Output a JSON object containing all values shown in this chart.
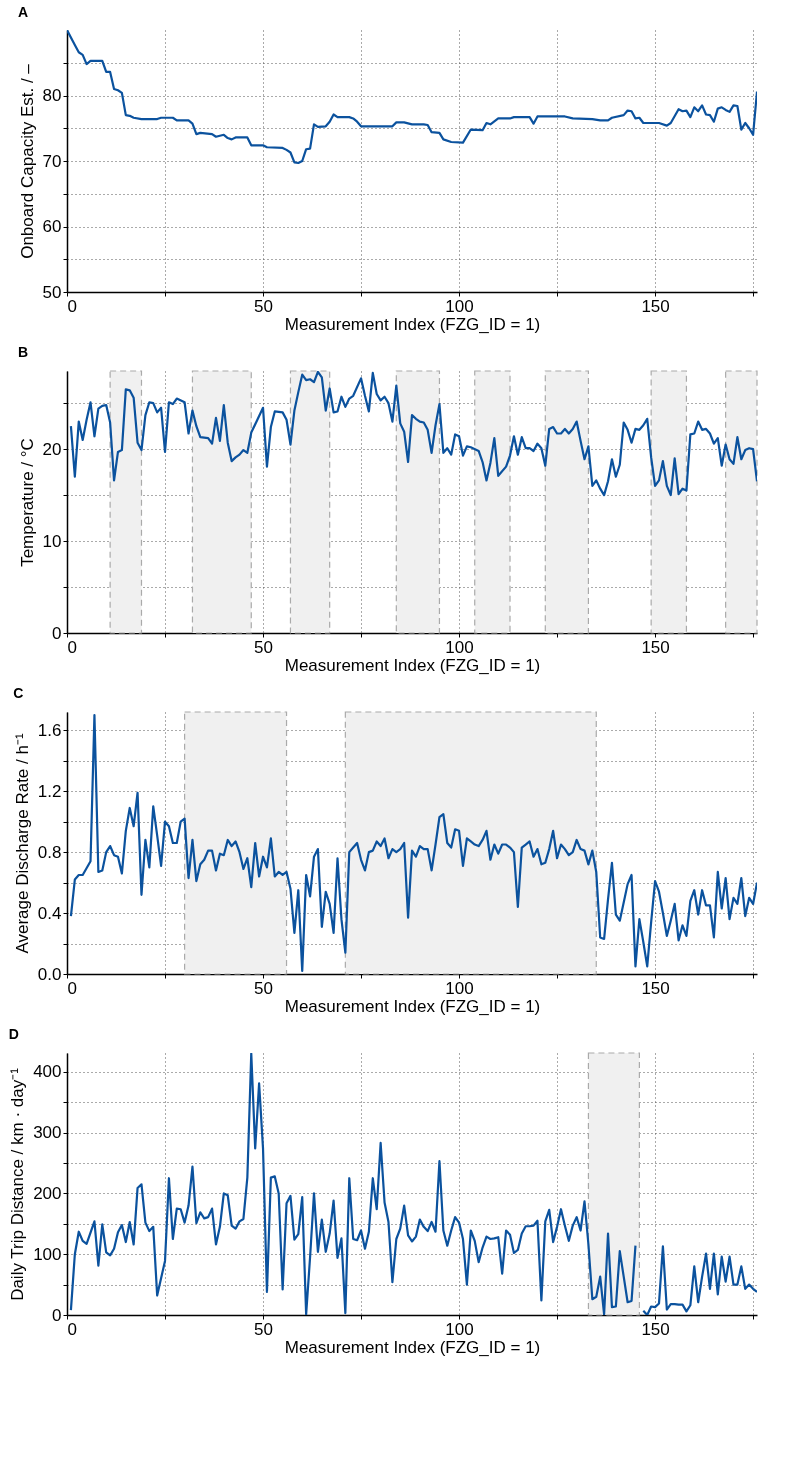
{
  "chart_data": [
    {
      "type": "line",
      "title": "A",
      "xlabel": "Measurement Index (FZG_ID = 1)",
      "ylabel": "Onboard Capacity Est. / –",
      "xlim": [
        0,
        176
      ],
      "ylim": [
        50,
        90
      ],
      "grid": true,
      "xticks": [
        0,
        {
          "value": 25,
          "label": null
        },
        50,
        {
          "value": 75,
          "label": null
        },
        100,
        {
          "value": 125,
          "label": null
        },
        150,
        {
          "value": 175,
          "label": null
        }
      ],
      "yticks": [
        50,
        {
          "value": 55,
          "label": null
        },
        60,
        {
          "value": 65,
          "label": null
        },
        70,
        {
          "value": 75,
          "label": null
        },
        80,
        {
          "value": 85,
          "label": null
        }
      ],
      "x": [
        0,
        2,
        3,
        4,
        5,
        6,
        9,
        10,
        11,
        12,
        13,
        14,
        15,
        16,
        17,
        19,
        23,
        24,
        27,
        28,
        31,
        32,
        33,
        34,
        37,
        38,
        40,
        41,
        42,
        43,
        46,
        47,
        50,
        51,
        55,
        56,
        57,
        58,
        59,
        60,
        61,
        62,
        63,
        64,
        66,
        67,
        68,
        69,
        72,
        73,
        74,
        75,
        83,
        84,
        86,
        88,
        91,
        92,
        93,
        95,
        96,
        98,
        101,
        103,
        106,
        107,
        108,
        110,
        113,
        114,
        118,
        119,
        120,
        127,
        129,
        134,
        136,
        138,
        139,
        142,
        143,
        144,
        145,
        146,
        147,
        151,
        153,
        154,
        156,
        157,
        158,
        159,
        160,
        161,
        162,
        163,
        164,
        165,
        166,
        167,
        168,
        169,
        170,
        171,
        172,
        173,
        174,
        175,
        176
      ],
      "series": [
        {
          "color": "#0b529e",
          "values": [
            90,
            87.7,
            86.6,
            86.2,
            84.8,
            85.3,
            85.3,
            83.6,
            83.6,
            81,
            80.8,
            80.4,
            77,
            76.9,
            76.6,
            76.4,
            76.4,
            76.6,
            76.6,
            76.2,
            76.2,
            75.7,
            74.1,
            74.3,
            74.1,
            73.7,
            74,
            73.5,
            73.3,
            73.6,
            73.6,
            72.4,
            72.4,
            72.1,
            72,
            71.7,
            71.3,
            69.8,
            69.7,
            70,
            71.8,
            71.9,
            75.6,
            75.2,
            75.3,
            76,
            77.1,
            76.7,
            76.7,
            76.5,
            76,
            75.3,
            75.3,
            75.9,
            75.9,
            75.6,
            75.6,
            75.5,
            74.4,
            74.3,
            73.3,
            72.9,
            72.8,
            74.8,
            74.7,
            75.8,
            75.6,
            76.5,
            76.5,
            76.7,
            76.7,
            75.7,
            76.8,
            76.8,
            76.5,
            76.4,
            76.2,
            76.2,
            76.6,
            77,
            77.7,
            77.6,
            76.5,
            76.6,
            75.8,
            75.8,
            75.4,
            75.8,
            77.9,
            77.6,
            77.7,
            76.7,
            78.2,
            77.6,
            78.5,
            77.1,
            77,
            76,
            78,
            78.2,
            77.8,
            77.5,
            78.5,
            78.4,
            74.8,
            75.8,
            75,
            74,
            80.6
          ]
        }
      ]
    },
    {
      "type": "line",
      "title": "B",
      "xlabel": "Measurement Index (FZG_ID = 1)",
      "ylabel": "Temperature / °C",
      "xlim": [
        0,
        176
      ],
      "ylim": [
        0,
        28.5
      ],
      "grid": true,
      "xticks": [
        0,
        {
          "value": 25,
          "label": null
        },
        50,
        {
          "value": 75,
          "label": null
        },
        100,
        {
          "value": 125,
          "label": null
        },
        150,
        {
          "value": 175,
          "label": null
        }
      ],
      "yticks": [
        0,
        {
          "value": 5,
          "label": null
        },
        10,
        {
          "value": 15,
          "label": null
        },
        20,
        {
          "value": 25,
          "label": null
        }
      ],
      "bands": [
        {
          "axis": "x",
          "from": 11,
          "to": 19,
          "color": "#f0f0f0"
        },
        {
          "axis": "x",
          "from": 32,
          "to": 47,
          "color": "#f0f0f0"
        },
        {
          "axis": "x",
          "from": 57,
          "to": 67,
          "color": "#f0f0f0"
        },
        {
          "axis": "x",
          "from": 84,
          "to": 95,
          "color": "#f0f0f0"
        },
        {
          "axis": "x",
          "from": 104,
          "to": 113,
          "color": "#f0f0f0"
        },
        {
          "axis": "x",
          "from": 122,
          "to": 133,
          "color": "#f0f0f0"
        },
        {
          "axis": "x",
          "from": 149,
          "to": 158,
          "color": "#f0f0f0"
        },
        {
          "axis": "x",
          "from": 168,
          "to": 176,
          "color": "#f0f0f0"
        }
      ],
      "x": [
        1,
        2,
        3,
        4,
        5,
        6,
        7,
        8,
        9,
        10,
        11,
        12,
        13,
        14,
        15,
        16,
        17,
        18,
        19,
        20,
        21,
        22,
        23,
        24,
        25,
        26,
        27,
        28,
        30,
        31,
        32,
        33,
        34,
        36,
        37,
        38,
        39,
        40,
        41,
        42,
        43,
        44,
        45,
        46,
        47,
        50,
        51,
        52,
        53,
        55,
        56,
        57,
        58,
        59,
        60,
        61,
        62,
        63,
        64,
        65,
        66,
        67,
        68,
        69,
        70,
        71,
        72,
        73,
        75,
        76,
        77,
        78,
        79,
        80,
        81,
        82,
        83,
        84,
        85,
        86,
        87,
        88,
        89,
        90,
        91,
        92,
        93,
        94,
        95,
        96,
        97,
        98,
        99,
        100,
        101,
        102,
        103,
        105,
        106,
        107,
        108,
        109,
        110,
        112,
        113,
        114,
        115,
        116,
        117,
        118,
        119,
        120,
        121,
        122,
        123,
        124,
        125,
        126,
        127,
        128,
        129,
        130,
        131,
        132,
        133,
        134,
        135,
        136,
        137,
        138,
        139,
        140,
        141,
        142,
        143,
        144,
        145,
        146,
        147,
        148,
        149,
        150,
        151,
        152,
        153,
        154,
        155,
        156,
        157,
        158,
        159,
        160,
        161,
        162,
        163,
        164,
        165,
        166,
        167,
        168,
        169,
        170,
        171,
        172,
        173,
        174,
        175,
        176
      ],
      "series": [
        {
          "color": "#0b529e",
          "values": [
            22.5,
            17,
            23,
            21,
            23.2,
            25.1,
            21.4,
            24.4,
            24.7,
            24.8,
            22.9,
            16.6,
            19.7,
            19.9,
            26.5,
            26.4,
            25.6,
            20.7,
            19.9,
            23.7,
            25.1,
            25,
            24,
            24.5,
            19.7,
            25.1,
            24.9,
            25.5,
            25.1,
            21.7,
            24.2,
            22.5,
            21.3,
            21.2,
            20.6,
            23.4,
            20.9,
            24.8,
            20.7,
            18.7,
            19.1,
            19.4,
            19.9,
            19.6,
            21.8,
            24.5,
            18.1,
            22.4,
            24.1,
            24,
            23.2,
            20.5,
            24.2,
            26.2,
            28.1,
            27.5,
            27.6,
            27.3,
            28.4,
            27.8,
            24.2,
            26.6,
            24,
            24.1,
            25.7,
            24.6,
            25.5,
            25.8,
            27.7,
            25.8,
            24.1,
            28.3,
            26,
            25.3,
            25.7,
            25,
            23,
            26.9,
            22.8,
            21.9,
            18.6,
            23.7,
            23.3,
            23,
            22.9,
            22.1,
            19.6,
            22.6,
            24.9,
            19.6,
            20.1,
            19.4,
            21.6,
            21.4,
            19.3,
            20.3,
            20.2,
            19.8,
            18.6,
            16.6,
            18.5,
            21.2,
            17.1,
            18.1,
            19.3,
            21.4,
            19.4,
            21.3,
            20.1,
            20.1,
            19.8,
            20.6,
            20.1,
            18.2,
            22.2,
            22.4,
            21.7,
            21.7,
            22.2,
            21.7,
            22.2,
            23,
            20.9,
            18.9,
            20.3,
            16,
            16.6,
            15.7,
            15,
            16.5,
            18.9,
            17,
            18.3,
            22.9,
            22.1,
            20.7,
            22.2,
            22.1,
            22.6,
            23.3,
            19.1,
            16,
            16.6,
            18.7,
            16,
            15,
            19,
            15.1,
            15.7,
            15.5,
            21.6,
            21.7,
            23,
            22.1,
            22.2,
            21.7,
            20.6,
            21.2,
            18.2,
            20.5,
            18.9,
            18.4,
            21.3,
            18.9,
            19.9,
            20.1,
            20,
            16.5
          ]
        }
      ]
    },
    {
      "type": "line",
      "title": "C",
      "xlabel": "Measurement Index (FZG_ID = 1)",
      "ylabel": "Average Discharge Rate  / h⁻¹",
      "xlim": [
        0,
        176
      ],
      "ylim": [
        0,
        1.72
      ],
      "grid": true,
      "xticks": [
        0,
        {
          "value": 25,
          "label": null
        },
        50,
        {
          "value": 75,
          "label": null
        },
        100,
        {
          "value": 125,
          "label": null
        },
        150,
        {
          "value": 175,
          "label": null
        }
      ],
      "yticks": [
        {
          "value": 0,
          "label": "0.0"
        },
        {
          "value": 0.2,
          "label": null
        },
        0.4,
        {
          "value": 0.6,
          "label": null
        },
        0.8,
        {
          "value": 1.0,
          "label": null
        },
        1.2,
        {
          "value": 1.4,
          "label": null
        },
        1.6
      ],
      "bands": [
        {
          "axis": "x",
          "from": 30,
          "to": 56,
          "color": "#f0f0f0"
        },
        {
          "axis": "x",
          "from": 71,
          "to": 135,
          "color": "#f0f0f0"
        }
      ],
      "x": [
        1,
        2,
        3,
        4,
        6,
        7,
        8,
        9,
        10,
        11,
        12,
        13,
        14,
        15,
        16,
        17,
        18,
        19,
        20,
        21,
        22,
        23,
        24,
        25,
        26,
        27,
        28,
        29,
        30,
        31,
        32,
        33,
        34,
        35,
        36,
        37,
        38,
        39,
        40,
        41,
        42,
        43,
        44,
        45,
        46,
        47,
        48,
        49,
        50,
        51,
        52,
        53,
        54,
        55,
        56,
        57,
        58,
        59,
        60,
        61,
        62,
        63,
        64,
        65,
        66,
        67,
        68,
        69,
        70,
        71,
        72,
        73,
        74,
        75,
        76,
        77,
        78,
        79,
        80,
        81,
        82,
        83,
        84,
        85,
        86,
        87,
        88,
        89,
        90,
        91,
        92,
        93,
        94,
        95,
        96,
        97,
        98,
        99,
        100,
        101,
        102,
        103,
        104,
        105,
        106,
        107,
        108,
        109,
        110,
        111,
        112,
        113,
        114,
        115,
        116,
        117,
        118,
        119,
        120,
        121,
        122,
        123,
        124,
        125,
        126,
        127,
        128,
        129,
        130,
        131,
        132,
        133,
        134,
        135,
        136,
        137,
        138,
        139,
        140,
        141,
        142,
        143,
        144,
        145,
        146,
        147,
        148,
        149,
        150,
        151,
        152,
        153,
        154,
        155,
        156,
        157,
        158,
        159,
        160,
        161,
        162,
        163,
        164,
        165,
        166,
        167,
        168,
        169,
        170,
        171,
        172,
        173,
        174,
        175,
        176
      ],
      "series": [
        {
          "color": "#0b529e",
          "values": [
            0.38,
            0.62,
            0.65,
            0.65,
            0.74,
            1.7,
            0.67,
            0.68,
            0.8,
            0.84,
            0.78,
            0.77,
            0.66,
            0.94,
            1.09,
            0.97,
            1.19,
            0.52,
            0.88,
            0.7,
            1.1,
            0.91,
            0.71,
            1,
            0.97,
            0.86,
            0.86,
            1,
            1.02,
            0.63,
            0.88,
            0.61,
            0.72,
            0.75,
            0.81,
            0.81,
            0.68,
            0.79,
            0.78,
            0.88,
            0.84,
            0.87,
            0.8,
            0.69,
            0.76,
            0.57,
            0.86,
            0.64,
            0.77,
            0.7,
            0.89,
            0.64,
            0.67,
            0.65,
            0.67,
            0.56,
            0.27,
            0.55,
            0.02,
            0.65,
            0.51,
            0.77,
            0.82,
            0.31,
            0.54,
            0.46,
            0.27,
            0.76,
            0.36,
            0.14,
            0.8,
            0.83,
            0.86,
            0.75,
            0.68,
            0.8,
            0.81,
            0.87,
            0.84,
            0.89,
            0.76,
            0.82,
            0.8,
            0.82,
            0.86,
            0.37,
            0.81,
            0.77,
            0.84,
            0.82,
            0.82,
            0.68,
            0.85,
            1.03,
            1.05,
            0.86,
            0.83,
            0.95,
            0.94,
            0.71,
            0.89,
            0.87,
            0.85,
            0.84,
            0.88,
            0.94,
            0.75,
            0.85,
            0.79,
            0.85,
            0.85,
            0.83,
            0.8,
            0.44,
            0.83,
            0.85,
            0.87,
            0.77,
            0.82,
            0.72,
            0.73,
            0.82,
            0.94,
            0.76,
            0.85,
            0.82,
            0.78,
            0.8,
            0.88,
            0.82,
            0.81,
            0.72,
            0.81,
            0.67,
            0.24,
            0.23,
            0.49,
            0.73,
            0.39,
            0.35,
            0.47,
            0.59,
            0.65,
            0.05,
            0.36,
            0.21,
            0.05,
            0.34,
            0.61,
            0.54,
            0.4,
            0.25,
            0.35,
            0.46,
            0.22,
            0.32,
            0.25,
            0.48,
            0.55,
            0.39,
            0.55,
            0.45,
            0.45,
            0.24,
            0.67,
            0.43,
            0.63,
            0.36,
            0.5,
            0.46,
            0.63,
            0.38,
            0.5,
            0.46,
            0.6
          ]
        }
      ]
    },
    {
      "type": "line",
      "title": "D",
      "xlabel": "Measurement Index (FZG_ID = 1)",
      "ylabel": "Daily Trip Distance  /  km · day⁻¹",
      "xlim": [
        0,
        176
      ],
      "ylim": [
        0,
        431
      ],
      "grid": true,
      "xticks": [
        0,
        {
          "value": 25,
          "label": null
        },
        50,
        {
          "value": 75,
          "label": null
        },
        100,
        {
          "value": 125,
          "label": null
        },
        150,
        {
          "value": 175,
          "label": null
        }
      ],
      "yticks": [
        0,
        {
          "value": 50,
          "label": null
        },
        100,
        {
          "value": 150,
          "label": null
        },
        200,
        {
          "value": 250,
          "label": null
        },
        300,
        {
          "value": 350,
          "label": null
        },
        400
      ],
      "bands": [
        {
          "axis": "x",
          "from": 133,
          "to": 146,
          "color": "#f0f0f0"
        }
      ],
      "x": [
        1,
        2,
        3,
        4,
        5,
        7,
        8,
        9,
        10,
        11,
        12,
        13,
        14,
        15,
        16,
        17,
        18,
        19,
        20,
        21,
        22,
        23,
        25,
        26,
        27,
        28,
        29,
        30,
        31,
        32,
        33,
        34,
        35,
        36,
        37,
        38,
        39,
        40,
        41,
        42,
        43,
        44,
        45,
        46,
        47,
        48,
        49,
        50,
        51,
        52,
        53,
        54,
        55,
        56,
        57,
        58,
        59,
        60,
        61,
        62,
        63,
        64,
        65,
        66,
        67,
        68,
        69,
        70,
        71,
        72,
        73,
        74,
        75,
        76,
        77,
        78,
        79,
        80,
        81,
        82,
        83,
        84,
        85,
        86,
        87,
        88,
        89,
        90,
        91,
        92,
        93,
        94,
        95,
        96,
        97,
        98,
        99,
        100,
        101,
        102,
        103,
        104,
        105,
        106,
        107,
        108,
        109,
        110,
        111,
        112,
        113,
        114,
        115,
        116,
        117,
        118,
        119,
        120,
        121,
        122,
        123,
        124,
        125,
        126,
        127,
        128,
        129,
        130,
        131,
        132,
        133,
        134,
        135,
        136,
        137,
        138,
        139,
        140,
        141,
        142,
        143,
        144,
        145,
        146,
        147,
        148,
        149,
        150,
        151,
        152,
        153,
        154,
        155,
        156,
        157,
        158,
        159,
        160,
        161,
        162,
        163,
        164,
        165,
        166,
        167,
        168,
        169,
        170,
        171,
        172,
        173,
        174,
        175,
        176
      ],
      "series": [
        {
          "color": "#0b529e",
          "values": [
            8,
            100,
            137,
            122,
            117,
            154,
            81,
            149,
            103,
            98,
            109,
            136,
            148,
            120,
            153,
            116,
            209,
            215,
            152,
            138,
            145,
            32,
            89,
            225,
            125,
            175,
            174,
            152,
            180,
            244,
            151,
            169,
            159,
            161,
            175,
            116,
            145,
            200,
            197,
            147,
            142,
            154,
            158,
            226,
            430,
            274,
            381,
            274,
            38,
            226,
            228,
            200,
            42,
            184,
            196,
            124,
            133,
            194,
            1,
            95,
            200,
            104,
            157,
            104,
            134,
            188,
            94,
            126,
            3,
            225,
            125,
            123,
            139,
            109,
            137,
            225,
            174,
            283,
            185,
            153,
            54,
            125,
            142,
            180,
            131,
            121,
            129,
            157,
            145,
            138,
            153,
            137,
            253,
            139,
            114,
            139,
            161,
            152,
            125,
            50,
            139,
            122,
            87,
            111,
            129,
            125,
            126,
            128,
            68,
            139,
            132,
            102,
            107,
            134,
            146,
            146,
            147,
            155,
            24,
            154,
            173,
            120,
            145,
            174,
            147,
            122,
            147,
            161,
            139,
            187,
            116,
            26,
            30,
            63,
            1,
            134,
            13,
            14,
            105,
            63,
            21,
            23,
            114,
            null,
            7,
            0,
            14,
            13,
            19,
            113,
            9,
            18,
            18,
            17,
            17,
            6,
            16,
            80,
            21,
            63,
            101,
            43,
            101,
            34,
            96,
            55,
            96,
            50,
            50,
            80,
            43,
            50,
            43,
            38
          ]
        }
      ]
    }
  ]
}
